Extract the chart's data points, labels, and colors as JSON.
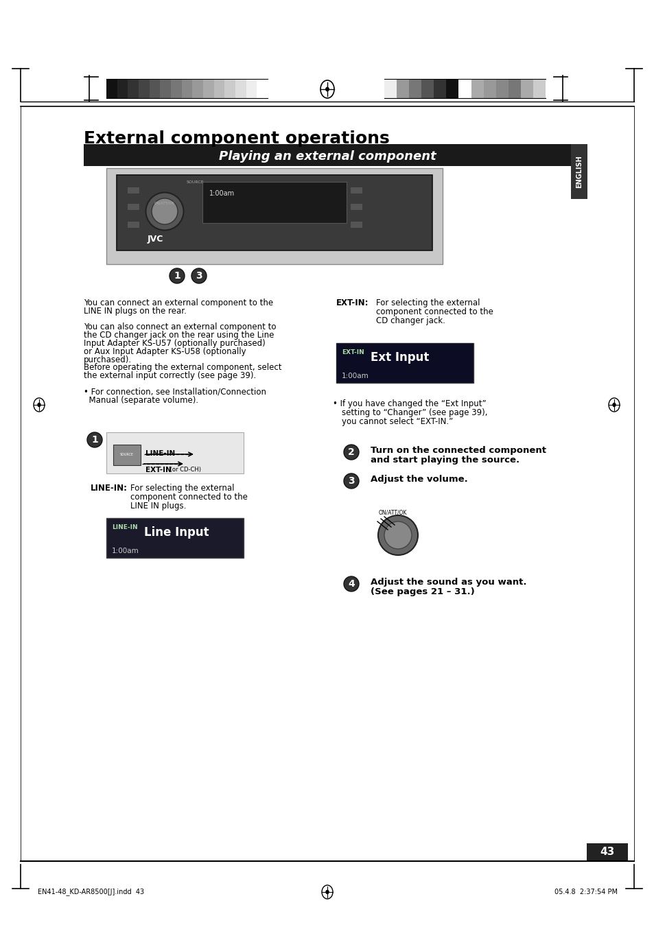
{
  "bg_color": "#ffffff",
  "title": "External component operations",
  "title_fontsize": 18,
  "section_header": "Playing an external component",
  "section_header_bg": "#1a1a1a",
  "section_header_fg": "#ffffff",
  "section_header_fontsize": 13,
  "page_number": "43",
  "footer_left": "EN41-48_KD-AR8500[J].indd  43",
  "footer_right": "05.4.8  2:37:54 PM",
  "english_tab_text": "ENGLISH",
  "body_text_left": [
    "You can connect an external component to the",
    "LINE IN plugs on the rear.",
    "",
    "You can also connect an external component to",
    "the CD changer jack on the rear using the Line",
    "Input Adapter KS-U57 (optionally purchased)",
    "or Aux Input Adapter KS-U58 (optionally",
    "purchased).",
    "Before operating the external component, select",
    "the external input correctly (see page 39).",
    "",
    "• For connection, see Installation/Connection",
    "  Manual (separate volume)."
  ],
  "step2_text": "Turn on the connected component\nand start playing the source.",
  "step3_text": "Adjust the volume.",
  "step4_text": "Adjust the sound as you want.\n(See pages 21 – 31.)",
  "gray_bar_colors_left": [
    "#111111",
    "#222222",
    "#333333",
    "#444444",
    "#555555",
    "#666666",
    "#777777",
    "#888888",
    "#999999",
    "#aaaaaa",
    "#bbbbbb",
    "#cccccc",
    "#dddddd",
    "#eeeeee",
    "#ffffff"
  ],
  "gray_bar_colors_right": [
    "#eeeeee",
    "#999999",
    "#777777",
    "#555555",
    "#333333",
    "#111111",
    "#ffffff",
    "#aaaaaa",
    "#999999",
    "#888888",
    "#777777",
    "#aaaaaa",
    "#cccccc"
  ]
}
